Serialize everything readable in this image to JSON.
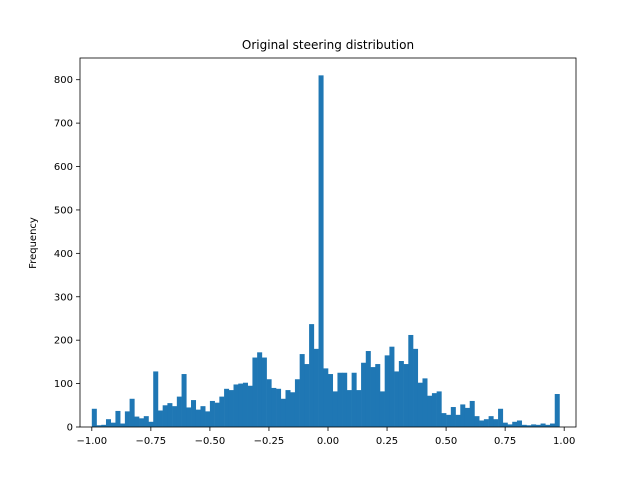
{
  "chart_data": {
    "type": "bar",
    "title": "Original steering distribution",
    "xlabel": "",
    "ylabel": "Frequency",
    "xlim": [
      -1.05,
      1.05
    ],
    "ylim": [
      0,
      850
    ],
    "xticks": [
      -1.0,
      -0.75,
      -0.5,
      -0.25,
      0.0,
      0.25,
      0.5,
      0.75,
      1.0
    ],
    "xtick_labels": [
      "−1.00",
      "−0.75",
      "−0.50",
      "−0.25",
      "0.00",
      "0.25",
      "0.50",
      "0.75",
      "1.00"
    ],
    "yticks": [
      0,
      100,
      200,
      300,
      400,
      500,
      600,
      700,
      800
    ],
    "ytick_labels": [
      "0",
      "100",
      "200",
      "300",
      "400",
      "500",
      "600",
      "700",
      "800"
    ],
    "bin_start": -1.0,
    "bin_width": 0.02,
    "color": "#1f77b4",
    "grid": false,
    "values": [
      42,
      4,
      5,
      18,
      10,
      37,
      8,
      36,
      65,
      24,
      20,
      25,
      12,
      128,
      38,
      50,
      55,
      48,
      70,
      122,
      45,
      62,
      40,
      48,
      36,
      60,
      56,
      70,
      88,
      85,
      98,
      100,
      102,
      95,
      160,
      172,
      160,
      110,
      90,
      88,
      65,
      85,
      80,
      110,
      168,
      145,
      237,
      180,
      810,
      135,
      122,
      82,
      125,
      125,
      85,
      125,
      85,
      148,
      175,
      138,
      145,
      82,
      165,
      185,
      128,
      152,
      145,
      212,
      180,
      102,
      112,
      72,
      78,
      82,
      32,
      28,
      46,
      28,
      52,
      44,
      60,
      25,
      15,
      18,
      25,
      18,
      42,
      10,
      6,
      12,
      15,
      5,
      4,
      6,
      5,
      8,
      5,
      8,
      76
    ]
  }
}
